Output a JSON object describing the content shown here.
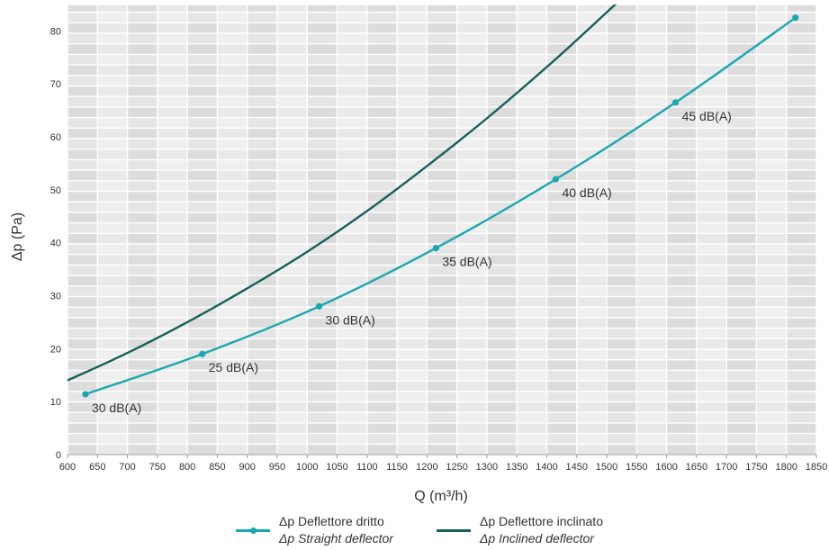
{
  "chart_data": {
    "type": "line",
    "xlabel": "Q (m³/h)",
    "ylabel": "Δp (Pa)",
    "xlim": [
      600,
      1850
    ],
    "ylim": [
      0,
      85
    ],
    "x_ticks": [
      600,
      650,
      700,
      750,
      800,
      850,
      900,
      950,
      1000,
      1050,
      1100,
      1150,
      1200,
      1250,
      1300,
      1350,
      1400,
      1450,
      1500,
      1550,
      1600,
      1650,
      1700,
      1750,
      1800,
      1850
    ],
    "y_ticks": [
      0,
      10,
      20,
      30,
      40,
      50,
      60,
      70,
      80
    ],
    "grid": true,
    "legend_position": "bottom",
    "series": [
      {
        "name": "Δp Deflettore dritto",
        "name_en": "Δp Straight deflector",
        "color": "#1aa7b0",
        "markers": true,
        "x": [
          630,
          825,
          1020,
          1215,
          1415,
          1615,
          1815
        ],
        "y": [
          11.4,
          19,
          28,
          39,
          52,
          66.5,
          82.5
        ],
        "point_labels": [
          "30 dB(A)",
          "25 dB(A)",
          "30 dB(A)",
          "35 dB(A)",
          "40 dB(A)",
          "45 dB(A)",
          ""
        ]
      },
      {
        "name": "Δp Deflettore inclinato",
        "name_en": "Δp Inclined deflector",
        "color": "#17605e",
        "markers": false,
        "x": [
          600,
          700,
          800,
          900,
          1000,
          1100,
          1200,
          1300,
          1400,
          1500,
          1532
        ],
        "y": [
          14,
          19.2,
          25,
          31.4,
          38.3,
          46,
          54.5,
          63.5,
          73.2,
          83.5,
          87
        ]
      }
    ]
  }
}
